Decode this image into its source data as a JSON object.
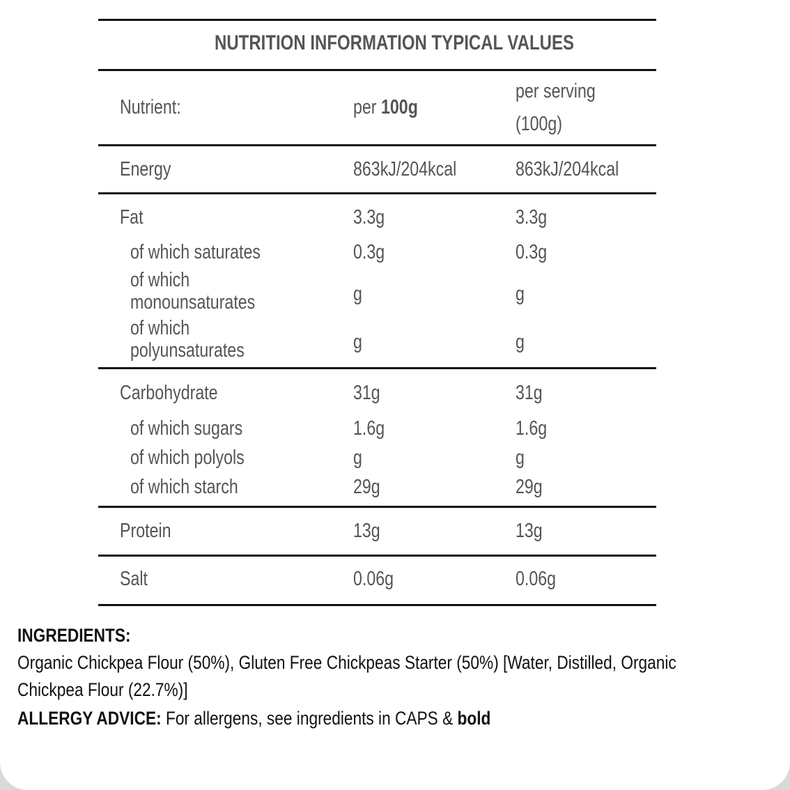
{
  "table": {
    "title": "NUTRITION INFORMATION TYPICAL VALUES",
    "header": {
      "nutrient": "Nutrient:",
      "per100_prefix": "per ",
      "per100_bold": "100g",
      "serving_line1": "per serving",
      "serving_line2": "(100g)"
    },
    "rows": [
      {
        "label": "Energy",
        "per100": "863kJ/204kcal",
        "serving": "863kJ/204kcal"
      },
      {
        "label": "Fat",
        "per100": "3.3g",
        "serving": "3.3g"
      },
      {
        "label": "of which saturates",
        "per100": "0.3g",
        "serving": "0.3g"
      },
      {
        "label": [
          "of which",
          "monounsaturates"
        ],
        "per100": "g",
        "serving": "g"
      },
      {
        "label": [
          "of which",
          "polyunsaturates"
        ],
        "per100": "g",
        "serving": "g"
      },
      {
        "label": "Carbohydrate",
        "per100": "31g",
        "serving": "31g"
      },
      {
        "label": "of which sugars",
        "per100": "1.6g",
        "serving": "1.6g"
      },
      {
        "label": "of which polyols",
        "per100": "g",
        "serving": "g"
      },
      {
        "label": "of which starch",
        "per100": "29g",
        "serving": "29g"
      },
      {
        "label": "Protein",
        "per100": "13g",
        "serving": "13g"
      },
      {
        "label": "Salt",
        "per100": "0.06g",
        "serving": "0.06g"
      }
    ]
  },
  "ingredients": {
    "heading": "INGREDIENTS:",
    "line1": "Organic Chickpea Flour (50%), Gluten Free Chickpeas Starter (50%) [Water, Distilled, Organic",
    "line2": "Chickpea Flour (22.7%)]"
  },
  "allergy": {
    "label": "ALLERGY ADVICE:",
    "text": " For allergens, see ingredients in CAPS & ",
    "bold": "bold"
  }
}
